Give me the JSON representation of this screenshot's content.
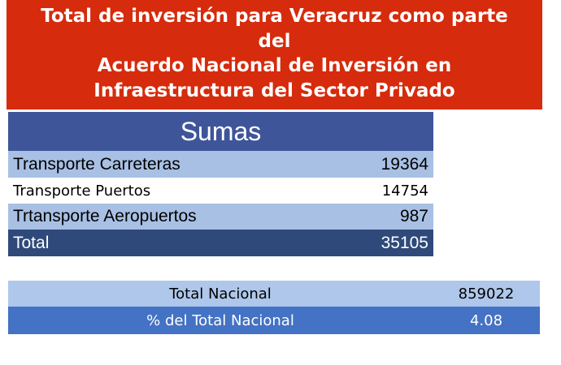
{
  "banner": {
    "lines": [
      "Total de inversión para Veracruz como parte",
      "del",
      "Acuerdo Nacional de Inversión en",
      "Infraestructura del Sector Privado"
    ]
  },
  "sumas_table": {
    "header": "Sumas",
    "rows": [
      {
        "label": "Transporte Carreteras",
        "value": "19364"
      },
      {
        "label": "Transporte Puertos",
        "value": "14754"
      },
      {
        "label": "Trtansporte Aeropuertos",
        "value": "987"
      },
      {
        "label": "Total",
        "value": "35105"
      }
    ]
  },
  "national_table": {
    "rows": [
      {
        "label": "Total Nacional",
        "value": "859022"
      },
      {
        "label": "% del Total Nacional",
        "value": "4.08"
      }
    ]
  },
  "colors": {
    "banner": "#d62b0c",
    "header": "#3e5599",
    "light_row": "#a8c0e4",
    "total_row": "#2f4a7a",
    "percent_row": "#4472c4"
  }
}
